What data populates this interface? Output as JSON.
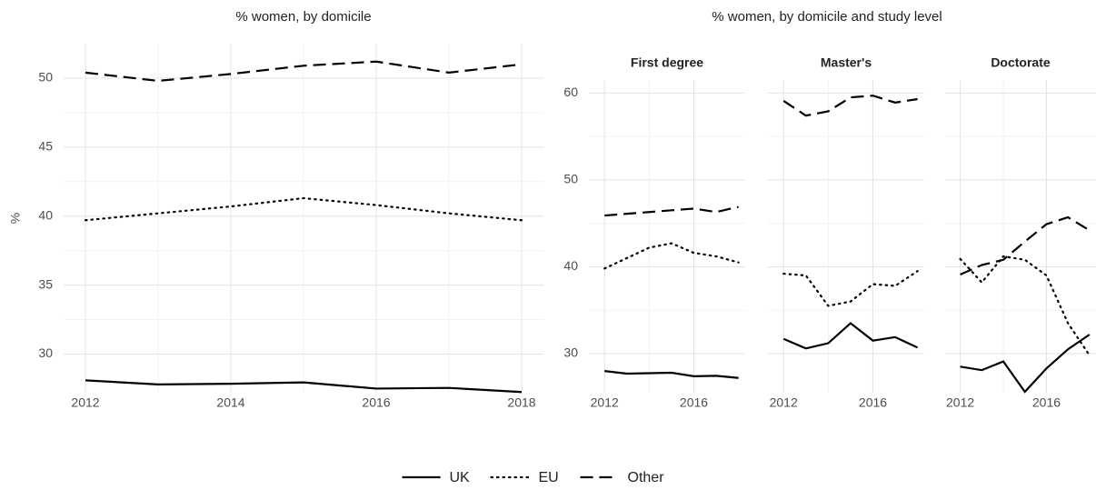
{
  "group_title": "% women, by domicile and study level",
  "chart_data": [
    {
      "type": "line",
      "title": "% women, by domicile",
      "ylabel": "%",
      "x": [
        2012,
        2013,
        2014,
        2015,
        2016,
        2017,
        2018
      ],
      "xlim": [
        2011.7,
        2018.3
      ],
      "xticks": [
        2012,
        2014,
        2016,
        2018
      ],
      "ylim": [
        27.2,
        52.5
      ],
      "yticks": [
        30,
        35,
        40,
        45,
        50
      ],
      "grid": true,
      "legend": "bottom",
      "series": [
        {
          "name": "UK",
          "color": "#000000",
          "linestyle": "solid",
          "values": [
            28.1,
            27.8,
            27.85,
            27.95,
            27.5,
            27.55,
            27.25
          ]
        },
        {
          "name": "EU",
          "color": "#000000",
          "linestyle": "dotted",
          "values": [
            39.7,
            40.2,
            40.7,
            41.3,
            40.8,
            40.2,
            39.7
          ]
        },
        {
          "name": "Other",
          "color": "#000000",
          "linestyle": "dashed",
          "values": [
            50.4,
            49.8,
            50.3,
            50.9,
            51.2,
            50.4,
            51.0
          ]
        }
      ]
    },
    {
      "type": "line",
      "title": "First degree",
      "x": [
        2012,
        2013,
        2014,
        2015,
        2016,
        2017,
        2018
      ],
      "xlim": [
        2011.3,
        2018.3
      ],
      "xticks": [
        2012,
        2016
      ],
      "ylim": [
        25.5,
        61.5
      ],
      "yticks": [
        30,
        40,
        50,
        60
      ],
      "grid": true,
      "series": [
        {
          "color": "#000000",
          "linestyle": "solid",
          "values": [
            28.0,
            27.7,
            27.75,
            27.8,
            27.4,
            27.45,
            27.2
          ]
        },
        {
          "color": "#000000",
          "linestyle": "dotted",
          "values": [
            39.8,
            41.0,
            42.2,
            42.7,
            41.6,
            41.2,
            40.5
          ]
        },
        {
          "color": "#000000",
          "linestyle": "dashed",
          "values": [
            45.9,
            46.1,
            46.3,
            46.5,
            46.7,
            46.3,
            46.9
          ]
        }
      ]
    },
    {
      "type": "line",
      "title": "Master's",
      "x": [
        2012,
        2013,
        2014,
        2015,
        2016,
        2017,
        2018
      ],
      "xlim": [
        2011.3,
        2018.3
      ],
      "xticks": [
        2012,
        2016
      ],
      "ylim": [
        25.5,
        61.5
      ],
      "yticks": [
        30,
        40,
        50,
        60
      ],
      "grid": true,
      "series": [
        {
          "color": "#000000",
          "linestyle": "solid",
          "values": [
            31.7,
            30.6,
            31.2,
            33.5,
            31.5,
            31.9,
            30.7
          ]
        },
        {
          "color": "#000000",
          "linestyle": "dotted",
          "values": [
            39.2,
            39.0,
            35.5,
            36.0,
            38.0,
            37.8,
            39.5
          ]
        },
        {
          "color": "#000000",
          "linestyle": "dashed",
          "values": [
            59.1,
            57.4,
            57.9,
            59.5,
            59.7,
            58.9,
            59.3
          ]
        }
      ]
    },
    {
      "type": "line",
      "title": "Doctorate",
      "x": [
        2012,
        2013,
        2014,
        2015,
        2016,
        2017,
        2018
      ],
      "xlim": [
        2011.3,
        2018.3
      ],
      "xticks": [
        2012,
        2016
      ],
      "ylim": [
        25.5,
        61.5
      ],
      "yticks": [
        30,
        40,
        50,
        60
      ],
      "grid": true,
      "series": [
        {
          "color": "#000000",
          "linestyle": "solid",
          "values": [
            28.5,
            28.1,
            29.1,
            25.6,
            28.3,
            30.5,
            32.2
          ]
        },
        {
          "color": "#000000",
          "linestyle": "dotted",
          "values": [
            40.9,
            38.2,
            41.2,
            40.8,
            39.0,
            33.5,
            29.8
          ]
        },
        {
          "color": "#000000",
          "linestyle": "dashed",
          "values": [
            39.1,
            40.2,
            40.8,
            42.9,
            44.9,
            45.7,
            44.2
          ]
        }
      ]
    }
  ]
}
